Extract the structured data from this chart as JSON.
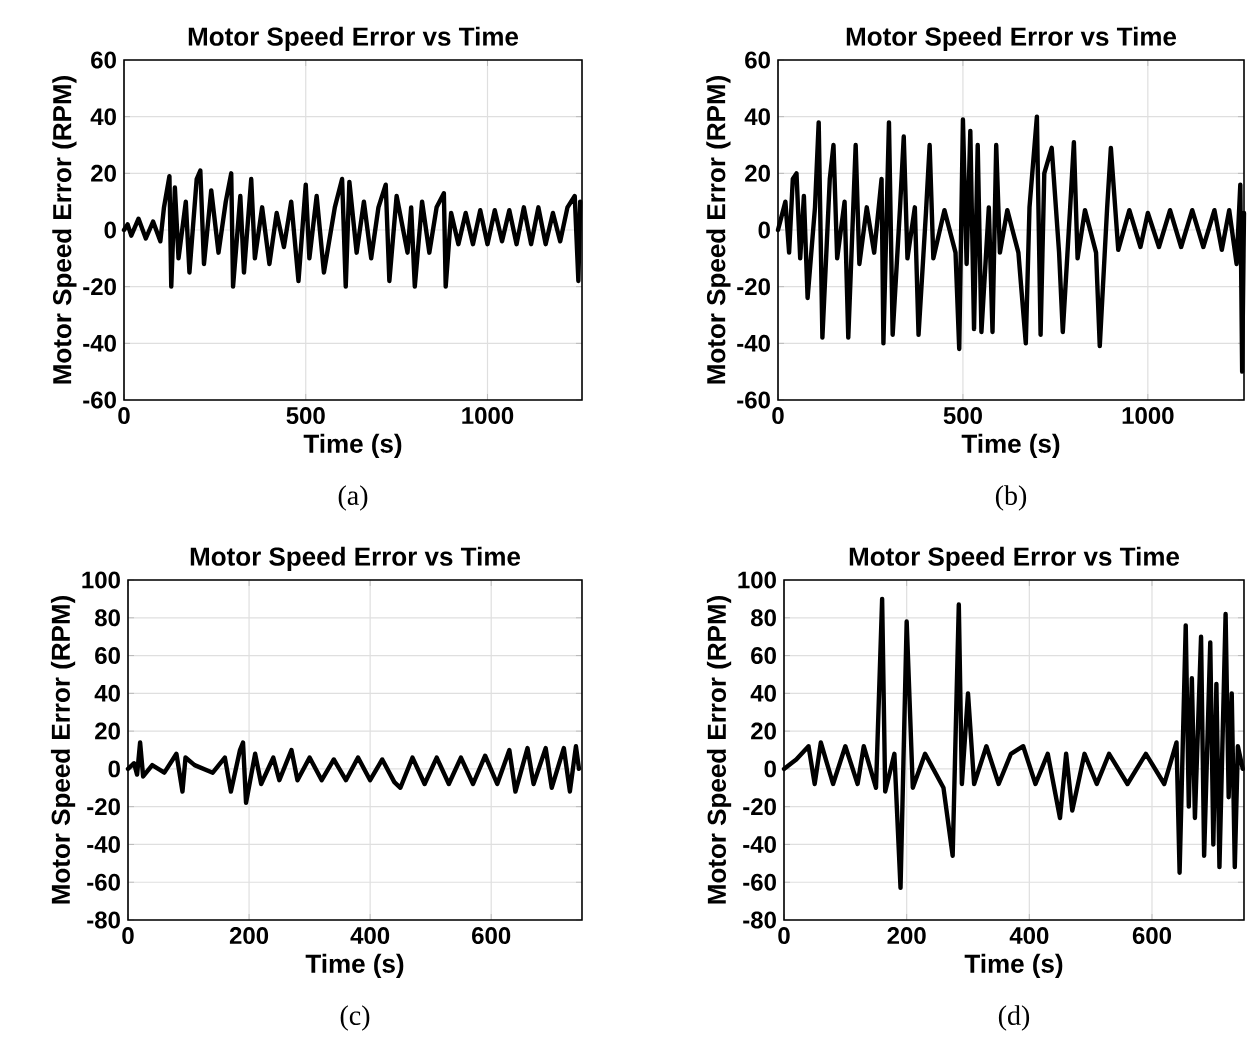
{
  "chart_data": [
    {
      "type": "line",
      "title": "Motor Speed Error vs Time",
      "xlabel": "Time (s)",
      "ylabel": "Motor Speed Error (RPM)",
      "color": "#000000",
      "xlim": [
        0,
        1260
      ],
      "xticks": [
        0,
        500,
        1000
      ],
      "ylim": [
        -60,
        60
      ],
      "yticks": [
        -60,
        -40,
        -20,
        0,
        20,
        40,
        60
      ],
      "grid": true,
      "annotations": [
        "(a)"
      ],
      "x": [
        0,
        10,
        20,
        40,
        60,
        80,
        100,
        110,
        125,
        130,
        140,
        150,
        170,
        180,
        200,
        210,
        220,
        240,
        260,
        280,
        295,
        300,
        320,
        330,
        350,
        360,
        380,
        400,
        420,
        440,
        460,
        480,
        500,
        510,
        530,
        550,
        580,
        600,
        610,
        620,
        640,
        660,
        680,
        700,
        720,
        730,
        750,
        780,
        790,
        800,
        820,
        840,
        860,
        880,
        885,
        900,
        920,
        940,
        960,
        980,
        1000,
        1020,
        1040,
        1060,
        1080,
        1100,
        1120,
        1140,
        1160,
        1180,
        1200,
        1220,
        1240,
        1250,
        1255
      ],
      "values": [
        0,
        2,
        -2,
        4,
        -3,
        3,
        -4,
        8,
        19,
        -20,
        15,
        -10,
        10,
        -15,
        18,
        21,
        -12,
        14,
        -8,
        10,
        20,
        -20,
        12,
        -15,
        18,
        -10,
        8,
        -12,
        6,
        -6,
        10,
        -18,
        16,
        -10,
        12,
        -15,
        8,
        18,
        -20,
        17,
        -8,
        10,
        -10,
        8,
        16,
        -18,
        12,
        -8,
        8,
        -20,
        10,
        -8,
        8,
        13,
        -20,
        6,
        -5,
        6,
        -5,
        7,
        -5,
        7,
        -4,
        7,
        -5,
        8,
        -5,
        8,
        -5,
        6,
        -4,
        8,
        12,
        -18,
        10
      ]
    },
    {
      "type": "line",
      "title": "Motor Speed Error vs Time",
      "xlabel": "Time (s)",
      "ylabel": "Motor Speed Error (RPM)",
      "color": "#000000",
      "xlim": [
        0,
        1260
      ],
      "xticks": [
        0,
        500,
        1000
      ],
      "ylim": [
        -60,
        60
      ],
      "yticks": [
        -60,
        -40,
        -20,
        0,
        20,
        40,
        60
      ],
      "grid": true,
      "annotations": [
        "(b)"
      ],
      "x": [
        0,
        20,
        30,
        40,
        50,
        60,
        70,
        80,
        100,
        110,
        120,
        140,
        150,
        160,
        180,
        190,
        210,
        220,
        240,
        260,
        280,
        285,
        300,
        310,
        330,
        340,
        350,
        370,
        380,
        400,
        410,
        420,
        450,
        480,
        490,
        500,
        510,
        520,
        530,
        540,
        550,
        570,
        580,
        590,
        600,
        620,
        650,
        670,
        680,
        700,
        710,
        720,
        740,
        760,
        770,
        790,
        800,
        810,
        830,
        860,
        870,
        890,
        900,
        920,
        950,
        980,
        1000,
        1030,
        1060,
        1090,
        1120,
        1150,
        1180,
        1200,
        1220,
        1240,
        1250,
        1255,
        1260
      ],
      "values": [
        0,
        10,
        -8,
        18,
        20,
        -10,
        12,
        -24,
        8,
        38,
        -38,
        18,
        30,
        -10,
        10,
        -38,
        30,
        -12,
        8,
        -8,
        18,
        -40,
        38,
        -37,
        8,
        33,
        -10,
        8,
        -37,
        6,
        30,
        -10,
        7,
        -8,
        -42,
        39,
        -12,
        35,
        -35,
        30,
        -36,
        8,
        -36,
        30,
        -8,
        7,
        -8,
        -40,
        8,
        40,
        -37,
        20,
        29,
        -8,
        -36,
        8,
        31,
        -10,
        7,
        -8,
        -41,
        8,
        29,
        -7,
        7,
        -6,
        6,
        -6,
        7,
        -6,
        7,
        -6,
        7,
        -7,
        7,
        -12,
        16,
        -50,
        6
      ]
    },
    {
      "type": "line",
      "title": "Motor Speed Error vs Time",
      "xlabel": "Time (s)",
      "ylabel": "Motor Speed Error (RPM)",
      "color": "#000000",
      "xlim": [
        0,
        750
      ],
      "xticks": [
        0,
        200,
        400,
        600
      ],
      "ylim": [
        -80,
        100
      ],
      "yticks": [
        -80,
        -60,
        -40,
        -20,
        0,
        20,
        40,
        60,
        80,
        100
      ],
      "grid": true,
      "annotations": [
        "(c)"
      ],
      "x": [
        0,
        10,
        15,
        20,
        25,
        40,
        60,
        80,
        90,
        95,
        110,
        140,
        160,
        170,
        185,
        190,
        195,
        210,
        220,
        240,
        250,
        270,
        280,
        300,
        320,
        340,
        360,
        380,
        400,
        420,
        440,
        450,
        470,
        490,
        510,
        530,
        550,
        570,
        590,
        610,
        630,
        640,
        660,
        670,
        690,
        700,
        720,
        730,
        740,
        745
      ],
      "values": [
        0,
        3,
        -3,
        14,
        -4,
        2,
        -2,
        8,
        -12,
        6,
        2,
        -2,
        6,
        -12,
        10,
        14,
        -18,
        8,
        -8,
        6,
        -6,
        10,
        -6,
        6,
        -6,
        5,
        -6,
        6,
        -6,
        5,
        -7,
        -10,
        6,
        -8,
        6,
        -8,
        6,
        -8,
        7,
        -8,
        10,
        -12,
        11,
        -8,
        11,
        -10,
        11,
        -12,
        12,
        0
      ]
    },
    {
      "type": "line",
      "title": "Motor Speed Error vs Time",
      "xlabel": "Time (s)",
      "ylabel": "Motor Speed Error (RPM)",
      "color": "#000000",
      "xlim": [
        0,
        750
      ],
      "xticks": [
        0,
        200,
        400,
        600
      ],
      "ylim": [
        -80,
        100
      ],
      "yticks": [
        -80,
        -60,
        -40,
        -20,
        0,
        20,
        40,
        60,
        80,
        100
      ],
      "grid": true,
      "annotations": [
        "(d)"
      ],
      "x": [
        0,
        20,
        40,
        50,
        60,
        80,
        100,
        120,
        130,
        150,
        160,
        165,
        180,
        190,
        200,
        210,
        230,
        260,
        275,
        285,
        290,
        300,
        310,
        330,
        350,
        370,
        390,
        410,
        430,
        450,
        460,
        470,
        490,
        510,
        530,
        560,
        590,
        620,
        640,
        645,
        655,
        660,
        665,
        670,
        680,
        685,
        695,
        700,
        705,
        710,
        720,
        725,
        730,
        735,
        740,
        748
      ],
      "values": [
        0,
        5,
        12,
        -8,
        14,
        -8,
        12,
        -8,
        12,
        -10,
        90,
        -12,
        8,
        -63,
        78,
        -10,
        8,
        -10,
        -46,
        87,
        -8,
        40,
        -8,
        12,
        -8,
        8,
        12,
        -8,
        8,
        -26,
        8,
        -22,
        8,
        -8,
        8,
        -8,
        8,
        -8,
        14,
        -55,
        76,
        -20,
        48,
        -26,
        70,
        -46,
        67,
        -40,
        45,
        -52,
        82,
        -15,
        40,
        -52,
        12,
        0
      ]
    }
  ]
}
